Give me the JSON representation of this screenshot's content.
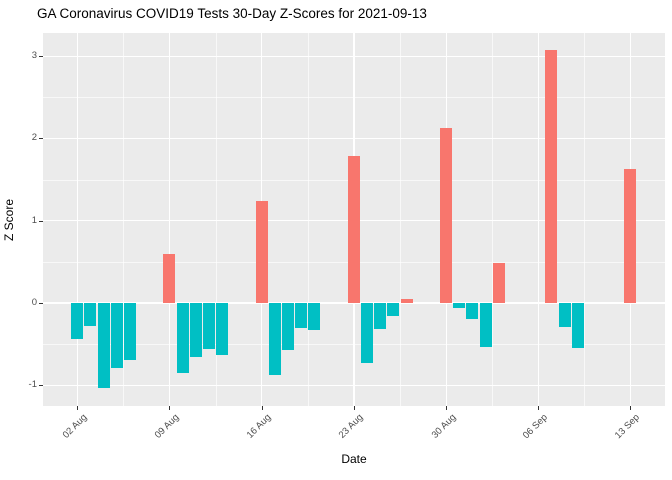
{
  "chart_data": {
    "type": "bar",
    "title": "GA Coronavirus COVID19 Tests 30-Day Z-Scores for 2021-09-13",
    "xlabel": "Date",
    "ylabel": "Z Score",
    "ylim": [
      -1.25,
      3.28
    ],
    "grid": "on",
    "legend": "none",
    "y_major_ticks": [
      -1,
      0,
      1,
      2,
      3
    ],
    "y_minor_ticks": [
      -0.5,
      0.5,
      1.5,
      2.5
    ],
    "x_ticks": [
      {
        "label": "02 Aug",
        "day_index": 0
      },
      {
        "label": "09 Aug",
        "day_index": 7
      },
      {
        "label": "16 Aug",
        "day_index": 14
      },
      {
        "label": "23 Aug",
        "day_index": 21
      },
      {
        "label": "30 Aug",
        "day_index": 28
      },
      {
        "label": "06 Sep",
        "day_index": 35
      },
      {
        "label": "13 Sep",
        "day_index": 42
      }
    ],
    "x_minor_day_indices": [
      3.5,
      10.5,
      17.5,
      24.5,
      31.5,
      38.5
    ],
    "points": [
      {
        "date": "2021-08-02",
        "day_index": 0,
        "value": -0.44
      },
      {
        "date": "2021-08-03",
        "day_index": 1,
        "value": -0.28
      },
      {
        "date": "2021-08-04",
        "day_index": 2,
        "value": -1.04
      },
      {
        "date": "2021-08-05",
        "day_index": 3,
        "value": -0.79
      },
      {
        "date": "2021-08-06",
        "day_index": 4,
        "value": -0.7
      },
      {
        "date": "2021-08-09",
        "day_index": 7,
        "value": 0.59
      },
      {
        "date": "2021-08-10",
        "day_index": 8,
        "value": -0.85
      },
      {
        "date": "2021-08-11",
        "day_index": 9,
        "value": -0.66
      },
      {
        "date": "2021-08-12",
        "day_index": 10,
        "value": -0.56
      },
      {
        "date": "2021-08-13",
        "day_index": 11,
        "value": -0.64
      },
      {
        "date": "2021-08-16",
        "day_index": 14,
        "value": 1.24
      },
      {
        "date": "2021-08-17",
        "day_index": 15,
        "value": -0.88
      },
      {
        "date": "2021-08-18",
        "day_index": 16,
        "value": -0.58
      },
      {
        "date": "2021-08-19",
        "day_index": 17,
        "value": -0.31
      },
      {
        "date": "2021-08-20",
        "day_index": 18,
        "value": -0.33
      },
      {
        "date": "2021-08-23",
        "day_index": 21,
        "value": 1.79
      },
      {
        "date": "2021-08-24",
        "day_index": 22,
        "value": -0.73
      },
      {
        "date": "2021-08-25",
        "day_index": 23,
        "value": -0.32
      },
      {
        "date": "2021-08-26",
        "day_index": 24,
        "value": -0.16
      },
      {
        "date": "2021-08-27",
        "day_index": 25,
        "value": 0.05
      },
      {
        "date": "2021-08-30",
        "day_index": 28,
        "value": 2.13
      },
      {
        "date": "2021-08-31",
        "day_index": 29,
        "value": -0.06
      },
      {
        "date": "2021-09-01",
        "day_index": 30,
        "value": -0.2
      },
      {
        "date": "2021-09-02",
        "day_index": 31,
        "value": -0.54
      },
      {
        "date": "2021-09-03",
        "day_index": 32,
        "value": 0.48
      },
      {
        "date": "2021-09-07",
        "day_index": 36,
        "value": 3.08
      },
      {
        "date": "2021-09-08",
        "day_index": 37,
        "value": -0.3
      },
      {
        "date": "2021-09-09",
        "day_index": 38,
        "value": -0.55
      },
      {
        "date": "2021-09-13",
        "day_index": 42,
        "value": 1.63
      }
    ],
    "colors": {
      "positive": "#F8766D",
      "negative": "#00BFC4",
      "panel_background": "#EBEBEB",
      "gridline": "#FFFFFF",
      "axis_text": "#4D4D4D",
      "title_text": "#000000"
    }
  }
}
